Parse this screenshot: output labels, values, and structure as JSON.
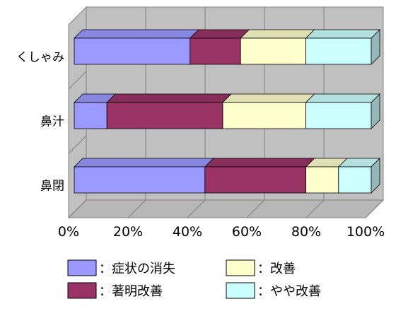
{
  "chart_data": {
    "type": "bar",
    "orientation": "horizontal",
    "stacking": "percent",
    "three_d": true,
    "categories": [
      "くしゃみ",
      "鼻汁",
      "鼻閉"
    ],
    "series": [
      {
        "name": "症状の消失",
        "values": [
          39,
          11,
          44
        ],
        "color": "#9999FF"
      },
      {
        "name": "著明改善",
        "values": [
          17,
          39,
          34
        ],
        "color": "#993366"
      },
      {
        "name": "改善",
        "values": [
          22,
          28,
          11
        ],
        "color": "#FFFFCC"
      },
      {
        "name": "やや改善",
        "values": [
          22,
          22,
          11
        ],
        "color": "#CCFFFF"
      }
    ],
    "xlim": [
      0,
      100
    ],
    "x_ticks": [
      "0%",
      "20%",
      "40%",
      "60%",
      "80%",
      "100%"
    ],
    "grid": true,
    "legend": {
      "position": "bottom",
      "separator": "："
    },
    "wall_color": "#C0C0C0",
    "floor_color": "#B8B8B8"
  }
}
